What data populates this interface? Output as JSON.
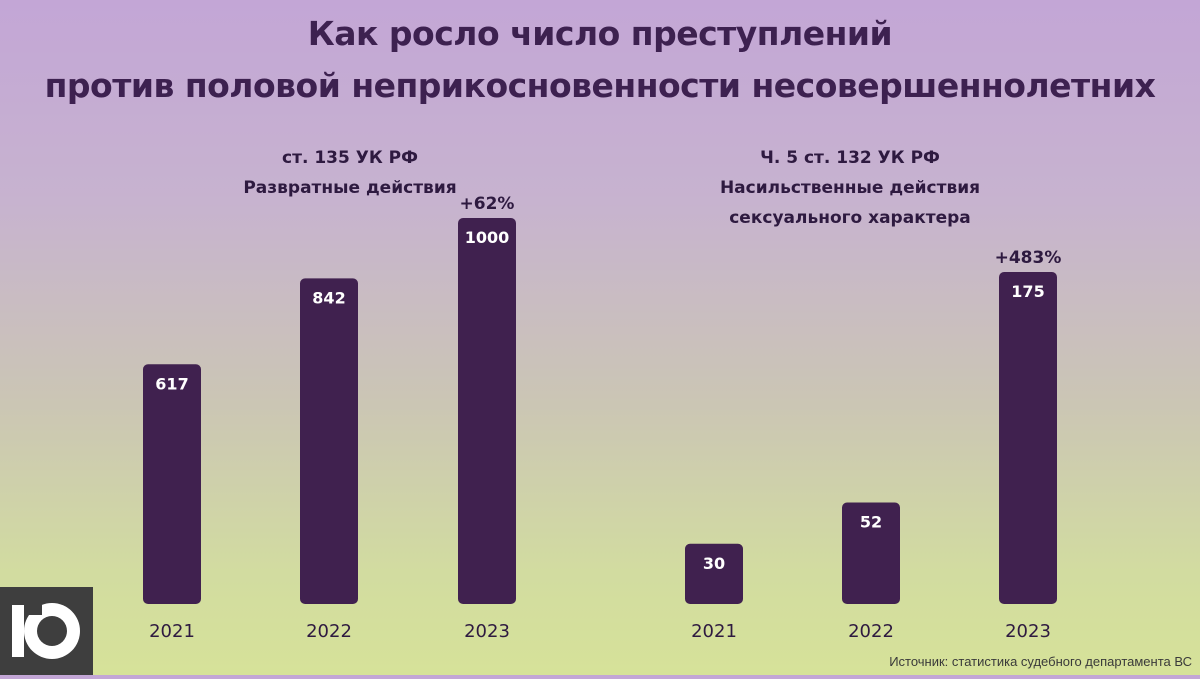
{
  "title": {
    "line1": "Как росло число преступлений",
    "line2": "против половой неприкосновенности несовершеннолетних"
  },
  "panel_left": {
    "subtitle_line1": "ст. 135 УК РФ",
    "subtitle_line2": "Развратные действия"
  },
  "panel_right": {
    "subtitle_line1": "Ч. 5 ст. 132  УК РФ",
    "subtitle_line2": "Насильственные действия",
    "subtitle_line3": "сексуального характера"
  },
  "source": "Источник: статистика судебного департамента ВС",
  "colors": {
    "bar": "#40214f",
    "title": "#3d2150"
  },
  "chart_data": [
    {
      "type": "bar",
      "title": "ст. 135 УК РФ Развратные действия",
      "categories": [
        "2021",
        "2022",
        "2023"
      ],
      "values": [
        617,
        842,
        1000
      ],
      "value_labels": [
        "617",
        "842",
        "1000"
      ],
      "annotation": {
        "category": "2023",
        "text": "+62%"
      },
      "ylim": [
        0,
        1000
      ]
    },
    {
      "type": "bar",
      "title": "Ч. 5 ст. 132 УК РФ Насильственные действия сексуального характера",
      "categories": [
        "2021",
        "2022",
        "2023"
      ],
      "values": [
        30,
        52,
        175
      ],
      "value_labels": [
        "30",
        "52",
        "175"
      ],
      "annotation": {
        "category": "2023",
        "text": "+483%"
      },
      "ylim": [
        0,
        175
      ]
    }
  ]
}
